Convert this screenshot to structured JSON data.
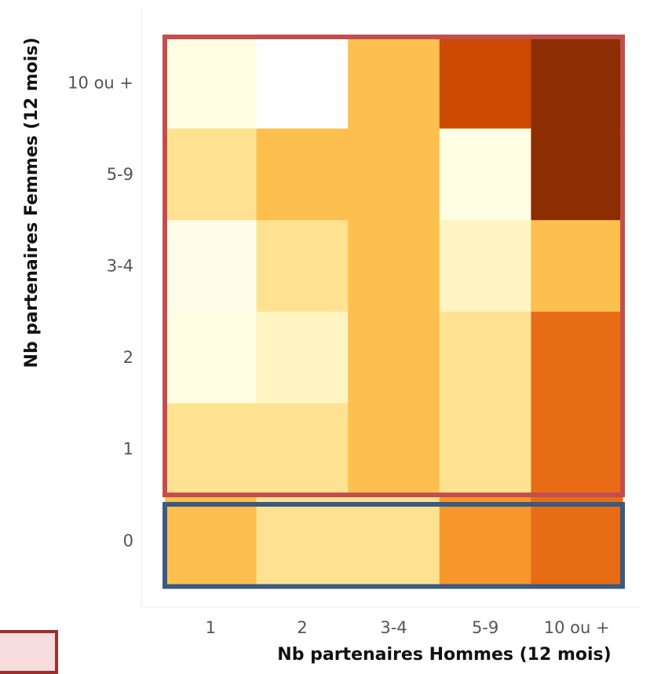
{
  "chart_data": {
    "type": "heatmap",
    "xlabel": "Nb partenaires Hommes (12 mois)",
    "ylabel": "Nb partenaires Femmes (12 mois)",
    "x_categories": [
      "1",
      "2",
      "3-4",
      "5-9",
      "10 ou +"
    ],
    "y_categories": [
      "10 ou +",
      "5-9",
      "3-4",
      "2",
      "1",
      "0"
    ],
    "cell_colors": [
      [
        "#fffde2",
        "#ffffff",
        "#fdbf4e",
        "#cc4a02",
        "#8c2d04"
      ],
      [
        "#fee291",
        "#fdbf4e",
        "#fdbf4e",
        "#fffde2",
        "#8c2d04"
      ],
      [
        "#fffde9",
        "#fee291",
        "#fdbf4e",
        "#fff4c2",
        "#fdbf4e"
      ],
      [
        "#fffde2",
        "#fff4c2",
        "#fdbf4e",
        "#fee291",
        "#e86c16"
      ],
      [
        "#fee291",
        "#fee291",
        "#fdbf4e",
        "#fee291",
        "#e86c16"
      ],
      [
        "#fdbf4e",
        "#fee291",
        "#fee291",
        "#f7962a",
        "#e86c16"
      ]
    ],
    "highlight_colors": {
      "upper_group": "#c14f4f",
      "bottom_row": "#3a5a82"
    },
    "grid": false
  }
}
